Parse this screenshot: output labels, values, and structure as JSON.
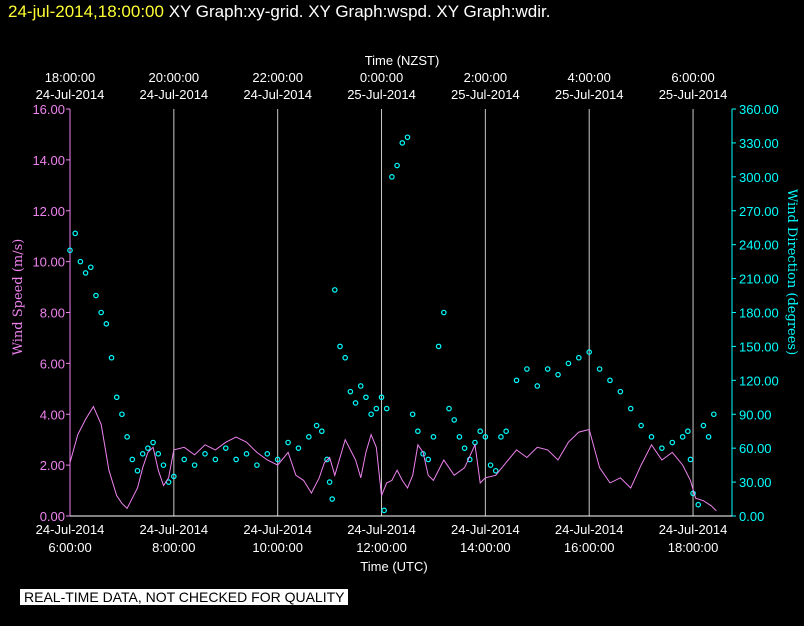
{
  "header": {
    "timestamp": "24-jul-2014,18:00:00",
    "graph_titles": "XY Graph:xy-grid.  XY Graph:wspd.  XY Graph:wdir."
  },
  "disclaimer": "REAL-TIME DATA, NOT CHECKED FOR QUALITY",
  "colors": {
    "background": "#000000",
    "speed": "#ee82ee",
    "direction": "#00ffff",
    "axis": "#ffffff",
    "grid": "#c8c8c8"
  },
  "chart_data": {
    "type": "line+scatter",
    "top_axis": {
      "label": "Time (NZST)",
      "ticks": [
        {
          "time": "18:00:00",
          "date": "24-Jul-2014"
        },
        {
          "time": "20:00:00",
          "date": "24-Jul-2014"
        },
        {
          "time": "22:00:00",
          "date": "24-Jul-2014"
        },
        {
          "time": "0:00:00",
          "date": "25-Jul-2014"
        },
        {
          "time": "2:00:00",
          "date": "25-Jul-2014"
        },
        {
          "time": "4:00:00",
          "date": "25-Jul-2014"
        },
        {
          "time": "6:00:00",
          "date": "25-Jul-2014"
        }
      ]
    },
    "bottom_axis": {
      "label": "Time (UTC)",
      "ticks": [
        {
          "date": "24-Jul-2014",
          "time": "6:00:00"
        },
        {
          "date": "24-Jul-2014",
          "time": "8:00:00"
        },
        {
          "date": "24-Jul-2014",
          "time": "10:00:00"
        },
        {
          "date": "24-Jul-2014",
          "time": "12:00:00"
        },
        {
          "date": "24-Jul-2014",
          "time": "14:00:00"
        },
        {
          "date": "24-Jul-2014",
          "time": "16:00:00"
        },
        {
          "date": "24-Jul-2014",
          "time": "18:00:00"
        }
      ],
      "range_hours_utc": [
        6,
        18.5
      ]
    },
    "left_axis": {
      "label": "Wind Speed (m/s)",
      "range": [
        0,
        16
      ],
      "ticks": [
        "0.00",
        "2.00",
        "4.00",
        "6.00",
        "8.00",
        "10.00",
        "12.00",
        "14.00",
        "16.00"
      ]
    },
    "right_axis": {
      "label": "Wind Direction (degrees)",
      "range": [
        0,
        360
      ],
      "ticks": [
        "0.00",
        "30.00",
        "60.00",
        "90.00",
        "120.00",
        "150.00",
        "180.00",
        "210.00",
        "240.00",
        "270.00",
        "300.00",
        "330.00",
        "360.00"
      ]
    },
    "series": [
      {
        "name": "Wind Speed",
        "style": "line",
        "x_hours_utc": [
          6.0,
          6.15,
          6.3,
          6.45,
          6.6,
          6.75,
          6.9,
          7.0,
          7.1,
          7.2,
          7.3,
          7.4,
          7.5,
          7.6,
          7.7,
          7.8,
          7.9,
          8.0,
          8.2,
          8.4,
          8.6,
          8.8,
          9.0,
          9.2,
          9.4,
          9.6,
          9.8,
          10.0,
          10.2,
          10.35,
          10.5,
          10.65,
          10.8,
          10.9,
          11.0,
          11.1,
          11.2,
          11.3,
          11.4,
          11.5,
          11.6,
          11.7,
          11.8,
          11.9,
          12.0,
          12.1,
          12.2,
          12.3,
          12.4,
          12.5,
          12.6,
          12.7,
          12.8,
          12.9,
          13.0,
          13.2,
          13.4,
          13.6,
          13.8,
          13.9,
          14.0,
          14.2,
          14.4,
          14.6,
          14.8,
          15.0,
          15.2,
          15.4,
          15.6,
          15.8,
          16.0,
          16.2,
          16.4,
          16.6,
          16.8,
          17.0,
          17.2,
          17.4,
          17.6,
          17.8,
          17.95,
          18.05,
          18.2,
          18.35,
          18.45
        ],
        "values": [
          2.1,
          3.2,
          3.8,
          4.3,
          3.6,
          1.8,
          0.8,
          0.5,
          0.3,
          0.7,
          1.1,
          1.9,
          2.5,
          2.7,
          1.8,
          1.2,
          1.5,
          2.6,
          2.7,
          2.4,
          2.8,
          2.6,
          2.9,
          3.1,
          2.9,
          2.5,
          2.2,
          2.0,
          2.5,
          1.6,
          1.4,
          0.9,
          1.5,
          2.1,
          2.3,
          1.6,
          2.3,
          3.0,
          2.6,
          2.2,
          1.5,
          2.5,
          3.2,
          2.7,
          0.8,
          1.3,
          1.4,
          1.8,
          1.4,
          1.1,
          1.6,
          2.8,
          2.5,
          1.6,
          1.4,
          2.2,
          1.6,
          1.9,
          2.8,
          1.3,
          1.5,
          1.6,
          2.1,
          2.6,
          2.3,
          2.7,
          2.6,
          2.2,
          2.9,
          3.3,
          3.4,
          1.9,
          1.3,
          1.5,
          1.1,
          2.0,
          2.8,
          2.2,
          2.5,
          2.0,
          1.4,
          0.7,
          0.6,
          0.4,
          0.2
        ]
      },
      {
        "name": "Wind Direction",
        "style": "scatter",
        "x_hours_utc": [
          6.0,
          6.1,
          6.2,
          6.3,
          6.4,
          6.5,
          6.6,
          6.7,
          6.8,
          6.9,
          7.0,
          7.1,
          7.2,
          7.3,
          7.4,
          7.5,
          7.6,
          7.7,
          7.8,
          7.9,
          8.0,
          8.2,
          8.4,
          8.6,
          8.8,
          9.0,
          9.2,
          9.4,
          9.6,
          9.8,
          10.0,
          10.2,
          10.4,
          10.6,
          10.75,
          10.85,
          10.95,
          11.0,
          11.05,
          11.1,
          11.2,
          11.3,
          11.4,
          11.5,
          11.6,
          11.7,
          11.8,
          11.9,
          12.0,
          12.05,
          12.1,
          12.2,
          12.3,
          12.4,
          12.5,
          12.6,
          12.7,
          12.8,
          12.9,
          13.0,
          13.1,
          13.2,
          13.3,
          13.4,
          13.5,
          13.6,
          13.7,
          13.8,
          13.9,
          14.0,
          14.1,
          14.2,
          14.3,
          14.4,
          14.6,
          14.8,
          15.0,
          15.2,
          15.4,
          15.6,
          15.8,
          16.0,
          16.2,
          16.4,
          16.6,
          16.8,
          17.0,
          17.2,
          17.4,
          17.6,
          17.8,
          17.9,
          17.95,
          18.0,
          18.1,
          18.2,
          18.3,
          18.4
        ],
        "values": [
          235,
          250,
          225,
          215,
          220,
          195,
          180,
          170,
          140,
          105,
          90,
          70,
          50,
          40,
          55,
          60,
          65,
          55,
          45,
          30,
          35,
          50,
          45,
          55,
          50,
          60,
          50,
          55,
          45,
          55,
          50,
          65,
          60,
          70,
          80,
          75,
          50,
          30,
          15,
          200,
          150,
          140,
          110,
          100,
          115,
          105,
          90,
          95,
          105,
          5,
          95,
          300,
          310,
          330,
          335,
          90,
          75,
          55,
          50,
          70,
          150,
          180,
          95,
          85,
          70,
          60,
          50,
          65,
          75,
          70,
          45,
          40,
          70,
          75,
          120,
          130,
          115,
          130,
          125,
          135,
          140,
          145,
          130,
          120,
          110,
          95,
          80,
          70,
          60,
          65,
          70,
          75,
          50,
          20,
          10,
          80,
          70,
          90
        ]
      }
    ]
  }
}
